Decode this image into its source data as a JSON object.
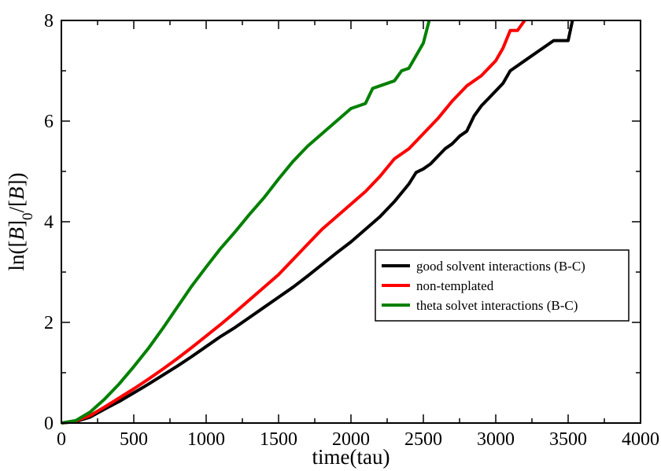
{
  "chart_data": {
    "type": "line",
    "title": "",
    "xlabel": "time(tau)",
    "ylabel": {
      "pre": "ln([",
      "b1": "B",
      "sub": "0",
      "mid": "/[",
      "b2": "B",
      "post": "])"
    },
    "xlim": [
      0,
      4000
    ],
    "ylim": [
      0,
      8
    ],
    "xticks": [
      "0",
      "500",
      "1000",
      "1500",
      "2000",
      "2500",
      "3000",
      "3500",
      "4000"
    ],
    "yticks": [
      "0",
      "2",
      "4",
      "6",
      "8"
    ],
    "xtick_values": [
      0,
      500,
      1000,
      1500,
      2000,
      2500,
      3000,
      3500,
      4000
    ],
    "ytick_values": [
      0,
      2,
      4,
      6,
      8
    ],
    "grid": false,
    "legend_position": "center-right",
    "series": [
      {
        "name": "good solvent interactions (B-C)",
        "color": "#000000",
        "points": [
          [
            0,
            0
          ],
          [
            100,
            0.03
          ],
          [
            200,
            0.12
          ],
          [
            300,
            0.28
          ],
          [
            400,
            0.43
          ],
          [
            500,
            0.6
          ],
          [
            600,
            0.77
          ],
          [
            700,
            0.95
          ],
          [
            800,
            1.13
          ],
          [
            900,
            1.32
          ],
          [
            1000,
            1.52
          ],
          [
            1100,
            1.72
          ],
          [
            1200,
            1.9
          ],
          [
            1300,
            2.1
          ],
          [
            1400,
            2.3
          ],
          [
            1500,
            2.5
          ],
          [
            1600,
            2.7
          ],
          [
            1700,
            2.92
          ],
          [
            1800,
            3.15
          ],
          [
            1900,
            3.38
          ],
          [
            2000,
            3.6
          ],
          [
            2100,
            3.85
          ],
          [
            2200,
            4.1
          ],
          [
            2300,
            4.4
          ],
          [
            2400,
            4.75
          ],
          [
            2450,
            4.98
          ],
          [
            2500,
            5.05
          ],
          [
            2550,
            5.15
          ],
          [
            2600,
            5.3
          ],
          [
            2650,
            5.45
          ],
          [
            2700,
            5.55
          ],
          [
            2750,
            5.7
          ],
          [
            2800,
            5.8
          ],
          [
            2850,
            6.1
          ],
          [
            2900,
            6.3
          ],
          [
            2950,
            6.45
          ],
          [
            3000,
            6.6
          ],
          [
            3050,
            6.75
          ],
          [
            3100,
            7.0
          ],
          [
            3150,
            7.1
          ],
          [
            3200,
            7.2
          ],
          [
            3300,
            7.4
          ],
          [
            3400,
            7.6
          ],
          [
            3500,
            7.6
          ],
          [
            3530,
            8.0
          ]
        ]
      },
      {
        "name": "non-templated",
        "color": "#ff0000",
        "points": [
          [
            0,
            0
          ],
          [
            100,
            0.04
          ],
          [
            200,
            0.15
          ],
          [
            300,
            0.32
          ],
          [
            400,
            0.5
          ],
          [
            500,
            0.68
          ],
          [
            600,
            0.87
          ],
          [
            700,
            1.07
          ],
          [
            800,
            1.28
          ],
          [
            900,
            1.5
          ],
          [
            1000,
            1.73
          ],
          [
            1100,
            1.96
          ],
          [
            1200,
            2.2
          ],
          [
            1300,
            2.45
          ],
          [
            1400,
            2.7
          ],
          [
            1500,
            2.95
          ],
          [
            1600,
            3.25
          ],
          [
            1700,
            3.55
          ],
          [
            1800,
            3.85
          ],
          [
            1900,
            4.1
          ],
          [
            2000,
            4.35
          ],
          [
            2100,
            4.6
          ],
          [
            2200,
            4.9
          ],
          [
            2300,
            5.25
          ],
          [
            2400,
            5.45
          ],
          [
            2500,
            5.75
          ],
          [
            2600,
            6.05
          ],
          [
            2700,
            6.4
          ],
          [
            2800,
            6.7
          ],
          [
            2900,
            6.9
          ],
          [
            3000,
            7.2
          ],
          [
            3050,
            7.45
          ],
          [
            3100,
            7.8
          ],
          [
            3150,
            7.8
          ],
          [
            3200,
            8.0
          ]
        ]
      },
      {
        "name": "theta solvet interactions (B-C)",
        "color": "#008000",
        "points": [
          [
            0,
            0
          ],
          [
            100,
            0.05
          ],
          [
            200,
            0.22
          ],
          [
            300,
            0.48
          ],
          [
            400,
            0.78
          ],
          [
            500,
            1.12
          ],
          [
            600,
            1.48
          ],
          [
            700,
            1.88
          ],
          [
            800,
            2.3
          ],
          [
            900,
            2.72
          ],
          [
            1000,
            3.1
          ],
          [
            1100,
            3.47
          ],
          [
            1200,
            3.8
          ],
          [
            1300,
            4.15
          ],
          [
            1400,
            4.48
          ],
          [
            1500,
            4.85
          ],
          [
            1600,
            5.2
          ],
          [
            1700,
            5.5
          ],
          [
            1800,
            5.75
          ],
          [
            1900,
            6.0
          ],
          [
            2000,
            6.25
          ],
          [
            2100,
            6.35
          ],
          [
            2150,
            6.65
          ],
          [
            2200,
            6.7
          ],
          [
            2300,
            6.8
          ],
          [
            2350,
            7.0
          ],
          [
            2400,
            7.05
          ],
          [
            2450,
            7.3
          ],
          [
            2500,
            7.55
          ],
          [
            2540,
            8.0
          ]
        ]
      }
    ]
  }
}
